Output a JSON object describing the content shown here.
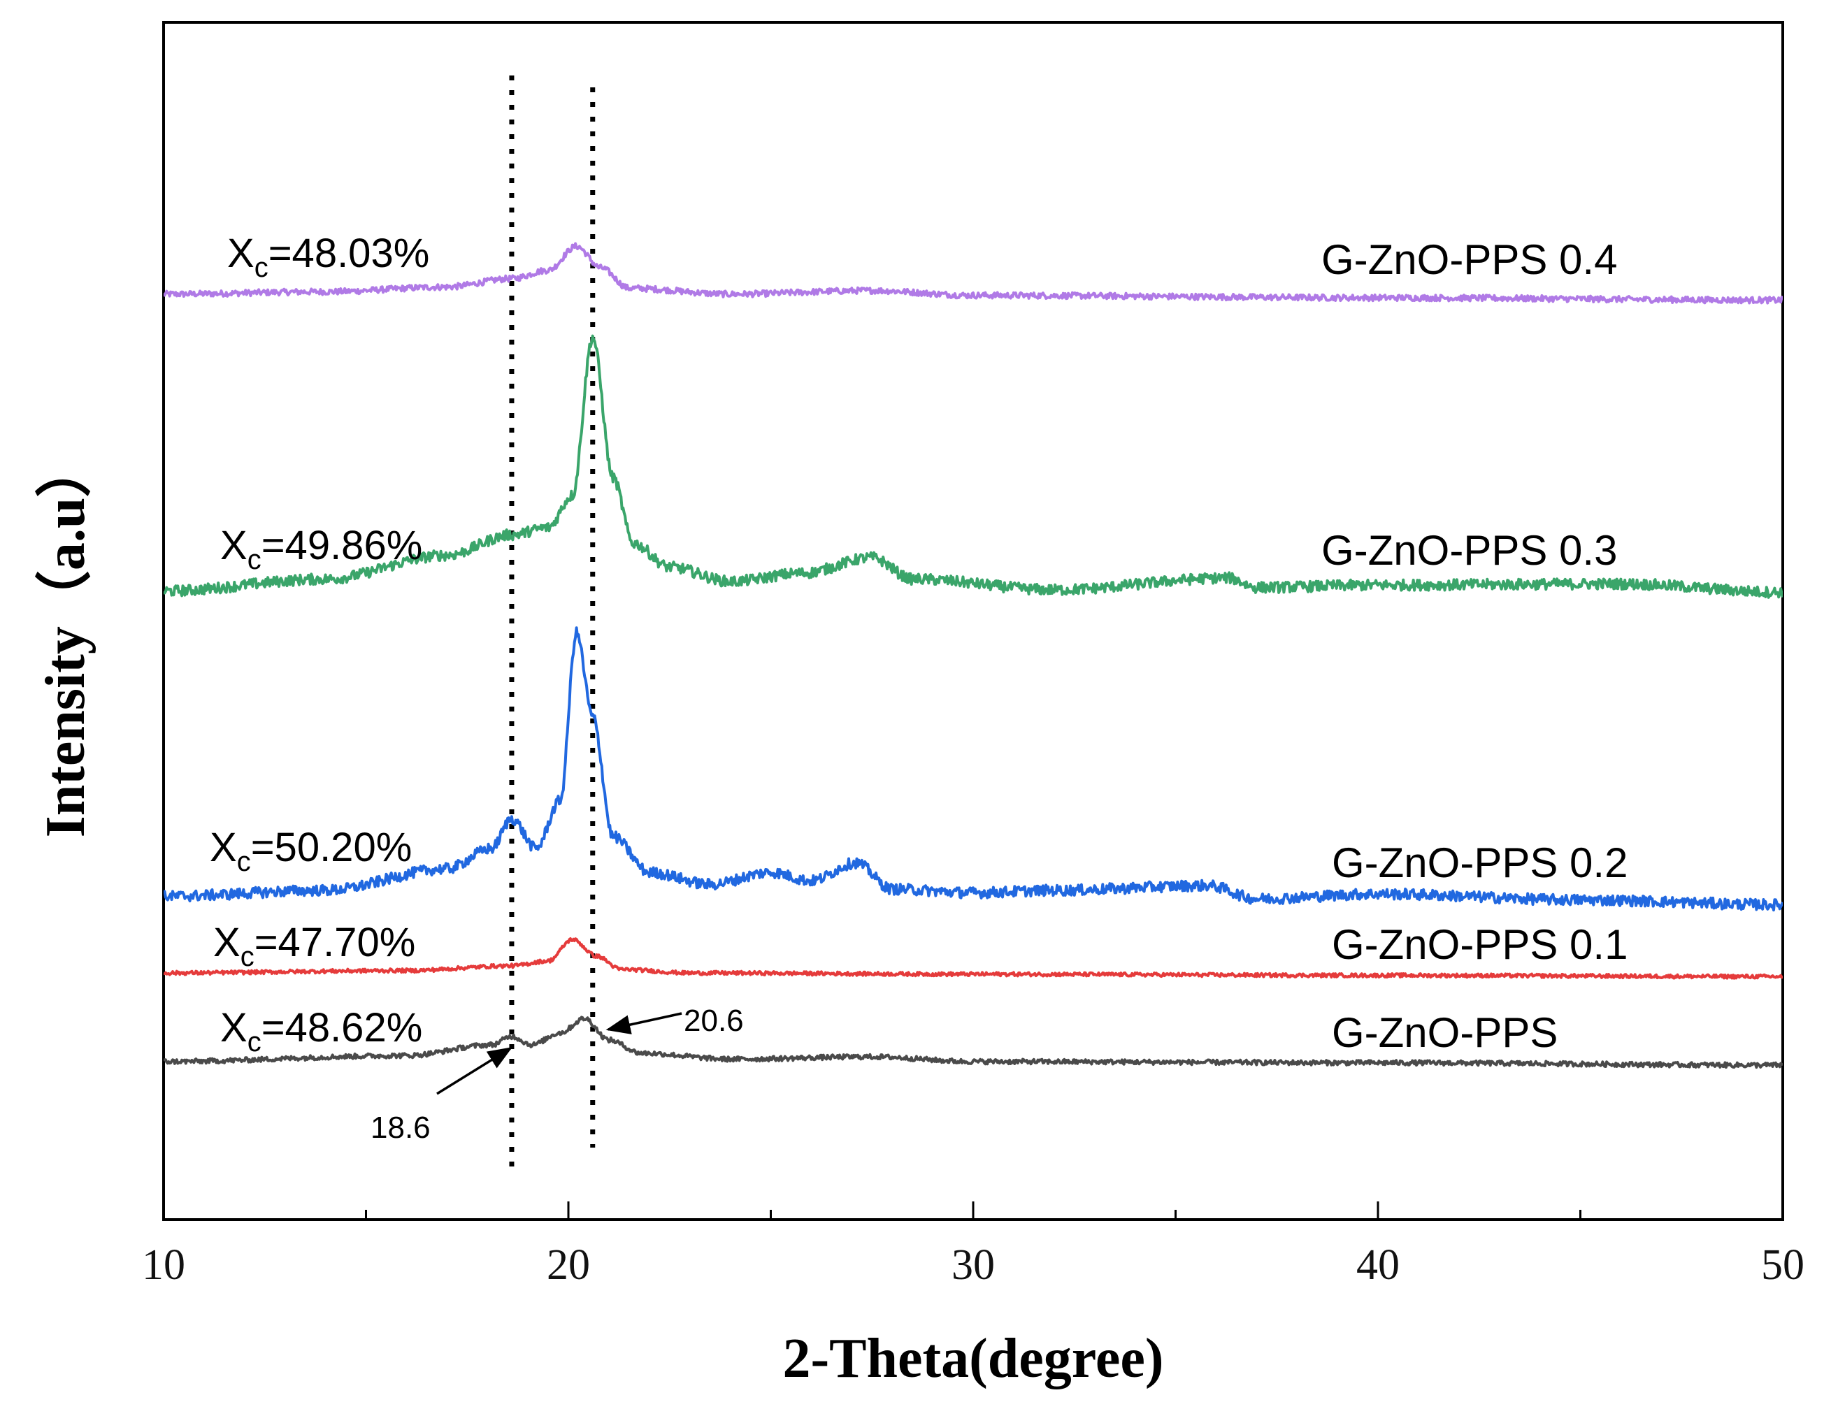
{
  "chart_data": {
    "type": "line",
    "title": "",
    "xlabel": "2-Theta(degree)",
    "ylabel": "Intensity（a.u）",
    "xlim": [
      10,
      50
    ],
    "xticks": [
      10,
      20,
      30,
      40,
      50
    ],
    "xtick_labels": [
      "10",
      "20",
      "30",
      "40",
      "50"
    ],
    "ylim": [
      0,
      100
    ],
    "yticks_shown": false,
    "grid": false,
    "series": [
      {
        "name": "G-ZnO-PPS 0.4",
        "color": "#b07ae6",
        "xc_prefix": "X",
        "xc_sub": "c",
        "xc_value": "=48.03%",
        "baseline": 77,
        "noise": 0.25,
        "x": [
          10,
          14,
          17,
          18.6,
          19.5,
          20.2,
          20.8,
          21.5,
          24,
          27.5,
          30,
          40,
          50
        ],
        "y": [
          77.3,
          77.5,
          77.9,
          78.6,
          79.3,
          81.3,
          79.5,
          77.8,
          77.3,
          77.6,
          77.2,
          77.0,
          76.8
        ]
      },
      {
        "name": "G-ZnO-PPS 0.3",
        "color": "#3aa56a",
        "xc_prefix": "X",
        "xc_sub": "c",
        "xc_value": "=49.86%",
        "baseline": 52,
        "noise": 0.45,
        "x": [
          10,
          14,
          17,
          18.6,
          19.5,
          20.1,
          20.6,
          21.1,
          21.6,
          22.5,
          24,
          25.8,
          27.5,
          28.5,
          32,
          36.3,
          37,
          40,
          46,
          50
        ],
        "y": [
          52.5,
          53.5,
          55.5,
          57.2,
          57.8,
          60.5,
          73.7,
          62,
          56.5,
          54.5,
          53.3,
          54.0,
          55.3,
          53.5,
          52.6,
          53.6,
          52.8,
          53.0,
          53.1,
          52.4
        ]
      },
      {
        "name": "G-ZnO-PPS 0.2",
        "color": "#2168e0",
        "xc_prefix": "X",
        "xc_sub": "c",
        "xc_value": "=50.20%",
        "baseline": 26,
        "noise": 0.45,
        "x": [
          10,
          14,
          17,
          18.1,
          18.6,
          19.2,
          19.8,
          20.2,
          20.6,
          21.1,
          22,
          23.5,
          25,
          26,
          27.1,
          28,
          30,
          32,
          35.8,
          37,
          40,
          45,
          50
        ],
        "y": [
          27.0,
          27.5,
          29.3,
          31.0,
          33.5,
          31.0,
          35.0,
          49.0,
          42.0,
          32.0,
          29.0,
          28.0,
          29.0,
          28.3,
          29.8,
          27.6,
          27.3,
          27.5,
          27.9,
          26.8,
          27.2,
          26.7,
          26.3
        ]
      },
      {
        "name": "G-ZnO-PPS 0.1",
        "color": "#e53b3b",
        "xc_prefix": "X",
        "xc_sub": "c",
        "xc_value": "=47.70%",
        "baseline": 20,
        "noise": 0.15,
        "x": [
          10,
          16,
          18.6,
          19.5,
          20.1,
          20.7,
          21.3,
          23,
          30,
          40,
          50
        ],
        "y": [
          20.6,
          20.8,
          21.2,
          21.6,
          23.4,
          22.0,
          20.9,
          20.6,
          20.5,
          20.4,
          20.3
        ]
      },
      {
        "name": "G-ZnO-PPS",
        "color": "#4a4a4a",
        "xc_prefix": "X",
        "xc_sub": "c",
        "xc_value": "=48.62%",
        "baseline": 13,
        "noise": 0.2,
        "x": [
          10,
          16,
          18.1,
          18.6,
          19.1,
          19.8,
          20.4,
          21.0,
          21.8,
          24,
          27.5,
          30,
          40,
          50
        ],
        "y": [
          13.2,
          13.7,
          14.6,
          15.3,
          14.6,
          15.6,
          16.8,
          15.0,
          13.9,
          13.4,
          13.6,
          13.2,
          13.1,
          12.9
        ]
      }
    ],
    "reference_lines": [
      {
        "x": 18.6,
        "style": "dotted"
      },
      {
        "x": 20.6,
        "style": "dotted"
      }
    ],
    "annotations": [
      {
        "text": "18.6",
        "x": 18.6
      },
      {
        "text": "20.6",
        "x": 20.6
      }
    ]
  }
}
